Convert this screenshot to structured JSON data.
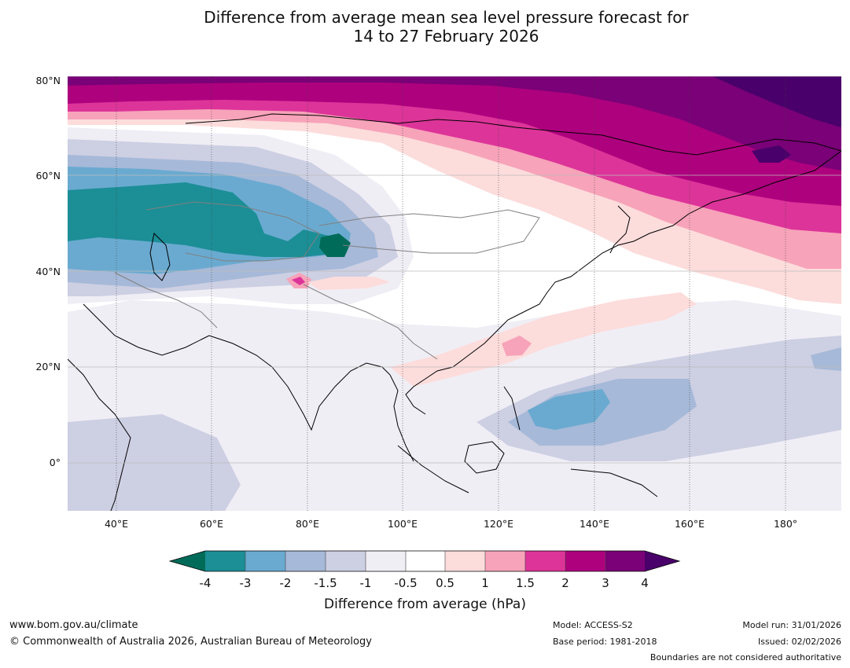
{
  "title": {
    "line1": "Difference from average mean sea level pressure forecast for",
    "line2": "14 to 27 February 2026"
  },
  "axes": {
    "lat_labels": [
      "80°N",
      "60°N",
      "40°N",
      "20°N",
      "0°"
    ],
    "lon_labels": [
      "40°E",
      "60°E",
      "80°E",
      "100°E",
      "120°E",
      "140°E",
      "160°E",
      "180°"
    ]
  },
  "colorbar": {
    "title": "Difference from average (hPa)",
    "tick_labels": [
      "-4",
      "-3",
      "-2",
      "-1.5",
      "-1",
      "-0.5",
      "0.5",
      "1",
      "1.5",
      "2",
      "3",
      "4"
    ],
    "colors": {
      "under": "#006b58",
      "c1": "#1c8e96",
      "c2": "#6aaad0",
      "c3": "#a6b9d8",
      "c4": "#cdcfe3",
      "c5": "#f0eef5",
      "c6": "#ffffff",
      "c7": "#fddcdc",
      "c8": "#f7a3b9",
      "c9": "#dd3499",
      "c10": "#ae017e",
      "c11": "#7a0177",
      "over": "#49006a"
    }
  },
  "footer": {
    "url": "www.bom.gov.au/climate",
    "copyright": "© Commonwealth of Australia 2026, Australian Bureau of Meteorology",
    "model": "Model: ACCESS-S2",
    "base_period": "Base period: 1981-2018",
    "model_run": "Model run: 31/01/2026",
    "issued": "Issued: 02/02/2026",
    "disclaimer": "Boundaries are not considered authoritative"
  }
}
